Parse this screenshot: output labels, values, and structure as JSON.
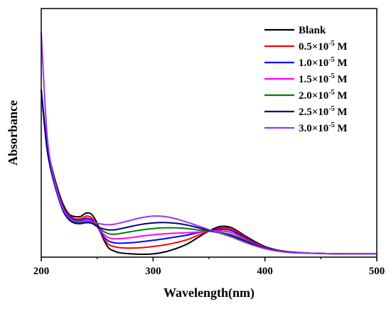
{
  "chart_data": {
    "type": "line",
    "xlabel": "Wavelength(nm)",
    "ylabel": "Absorbance",
    "xlim": [
      200,
      500
    ],
    "ylim": [
      0,
      1
    ],
    "x_ticks": [
      200,
      300,
      400,
      500
    ],
    "y_ticks_shown": false,
    "grid": false,
    "legend_position": "top-right",
    "x": [
      200,
      205,
      210,
      215,
      220,
      225,
      230,
      235,
      240,
      245,
      250,
      255,
      260,
      265,
      270,
      280,
      290,
      300,
      310,
      320,
      330,
      340,
      350,
      360,
      370,
      380,
      390,
      400,
      410,
      420,
      430,
      440,
      450,
      460,
      470,
      480,
      490,
      500
    ],
    "series": [
      {
        "name": "Blank",
        "color": "#000000",
        "legend_main": "Blank",
        "legend_sup": "",
        "legend_tail": "",
        "values": [
          0.74,
          0.5,
          0.38,
          0.29,
          0.22,
          0.18,
          0.17,
          0.17,
          0.185,
          0.18,
          0.14,
          0.075,
          0.03,
          0.015,
          0.007,
          0.002,
          0.0,
          0.002,
          0.01,
          0.025,
          0.045,
          0.075,
          0.105,
          0.125,
          0.12,
          0.09,
          0.06,
          0.035,
          0.02,
          0.012,
          0.008,
          0.005,
          0.004,
          0.003,
          0.002,
          0.002,
          0.002,
          0.002
        ]
      },
      {
        "name": "0.5×10-5 M",
        "color": "#ff0000",
        "legend_main": "0.5×10",
        "legend_sup": "-5",
        "legend_tail": " M",
        "values": [
          0.74,
          0.5,
          0.37,
          0.28,
          0.21,
          0.175,
          0.16,
          0.16,
          0.172,
          0.165,
          0.13,
          0.08,
          0.045,
          0.035,
          0.03,
          0.028,
          0.03,
          0.035,
          0.042,
          0.052,
          0.065,
          0.085,
          0.105,
          0.118,
          0.115,
          0.085,
          0.055,
          0.032,
          0.018,
          0.011,
          0.007,
          0.005,
          0.004,
          0.003,
          0.002,
          0.002,
          0.002,
          0.002
        ]
      },
      {
        "name": "1.0×10-5 M",
        "color": "#0000ff",
        "legend_main": "1.0×10",
        "legend_sup": "-5",
        "legend_tail": " M",
        "values": [
          0.74,
          0.49,
          0.365,
          0.275,
          0.205,
          0.17,
          0.155,
          0.153,
          0.162,
          0.156,
          0.125,
          0.085,
          0.06,
          0.052,
          0.05,
          0.052,
          0.057,
          0.063,
          0.07,
          0.078,
          0.086,
          0.097,
          0.107,
          0.112,
          0.107,
          0.08,
          0.052,
          0.03,
          0.017,
          0.01,
          0.007,
          0.005,
          0.004,
          0.003,
          0.002,
          0.002,
          0.002,
          0.002
        ]
      },
      {
        "name": "1.5×10-5 M",
        "color": "#ff00ff",
        "legend_main": "1.5×10",
        "legend_sup": "-5",
        "legend_tail": " M",
        "values": [
          0.74,
          0.49,
          0.36,
          0.27,
          0.2,
          0.165,
          0.15,
          0.148,
          0.155,
          0.15,
          0.125,
          0.095,
          0.075,
          0.07,
          0.07,
          0.075,
          0.082,
          0.088,
          0.092,
          0.095,
          0.097,
          0.1,
          0.104,
          0.105,
          0.098,
          0.075,
          0.05,
          0.03,
          0.017,
          0.01,
          0.007,
          0.005,
          0.004,
          0.003,
          0.002,
          0.002,
          0.002,
          0.002
        ]
      },
      {
        "name": "2.0×10-5 M",
        "color": "#008000",
        "legend_main": "2.0×10",
        "legend_sup": "-5",
        "legend_tail": " M",
        "values": [
          0.74,
          0.485,
          0.355,
          0.265,
          0.195,
          0.16,
          0.145,
          0.143,
          0.148,
          0.145,
          0.125,
          0.105,
          0.093,
          0.09,
          0.093,
          0.102,
          0.11,
          0.116,
          0.119,
          0.119,
          0.116,
          0.11,
          0.104,
          0.098,
          0.088,
          0.068,
          0.047,
          0.028,
          0.016,
          0.01,
          0.007,
          0.005,
          0.004,
          0.003,
          0.002,
          0.002,
          0.002,
          0.002
        ]
      },
      {
        "name": "2.5×10-5 M",
        "color": "#000080",
        "legend_main": "2.5×10",
        "legend_sup": "-5",
        "legend_tail": " M",
        "values": [
          0.74,
          0.48,
          0.35,
          0.26,
          0.19,
          0.155,
          0.14,
          0.138,
          0.142,
          0.14,
          0.125,
          0.115,
          0.11,
          0.11,
          0.114,
          0.125,
          0.135,
          0.141,
          0.143,
          0.14,
          0.132,
          0.12,
          0.107,
          0.095,
          0.082,
          0.063,
          0.044,
          0.027,
          0.016,
          0.01,
          0.007,
          0.005,
          0.004,
          0.003,
          0.002,
          0.002,
          0.002,
          0.002
        ]
      },
      {
        "name": "3.0×10-5 M",
        "color": "#9933ff",
        "legend_main": "3.0×10",
        "legend_sup": "-5",
        "legend_tail": " M",
        "values": [
          1.0,
          0.55,
          0.37,
          0.27,
          0.2,
          0.165,
          0.15,
          0.148,
          0.15,
          0.148,
          0.14,
          0.135,
          0.133,
          0.135,
          0.14,
          0.153,
          0.165,
          0.172,
          0.17,
          0.16,
          0.145,
          0.128,
          0.111,
          0.095,
          0.078,
          0.058,
          0.04,
          0.025,
          0.015,
          0.009,
          0.006,
          0.005,
          0.004,
          0.003,
          0.002,
          0.002,
          0.002,
          0.002
        ]
      }
    ]
  }
}
